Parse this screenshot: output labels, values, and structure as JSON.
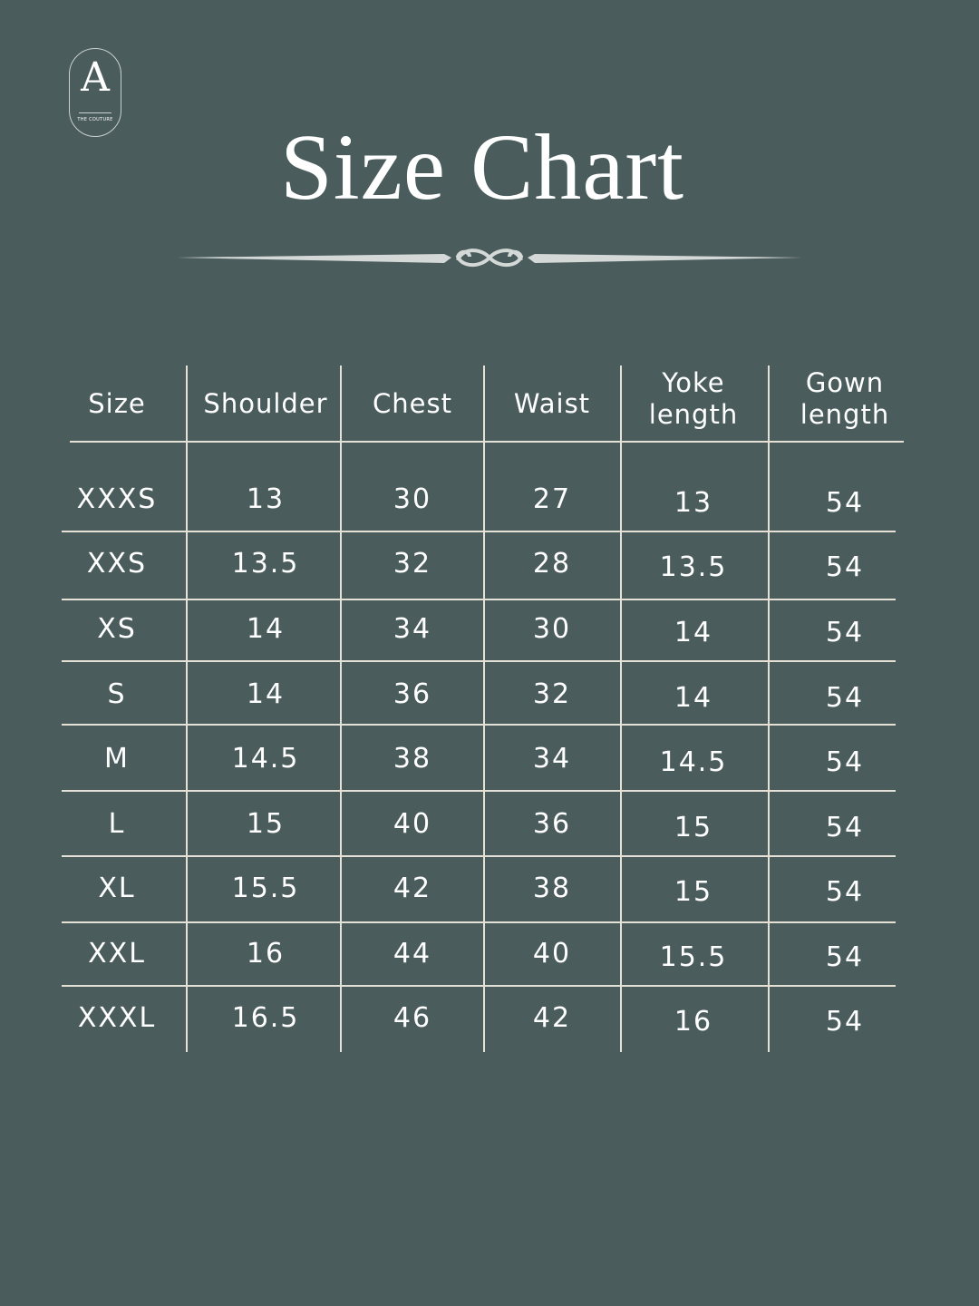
{
  "logo": {
    "letter": "A",
    "tagline": "THE COUTURE"
  },
  "title": "Size Chart",
  "table": {
    "headers": [
      [
        "Size"
      ],
      [
        "Shoulder"
      ],
      [
        "Chest"
      ],
      [
        "Waist"
      ],
      [
        "Yoke",
        "length"
      ],
      [
        "Gown",
        "length"
      ]
    ],
    "rows": [
      [
        "XXXS",
        "13",
        "30",
        "27",
        "13",
        "54"
      ],
      [
        "XXS",
        "13.5",
        "32",
        "28",
        "13.5",
        "54"
      ],
      [
        "XS",
        "14",
        "34",
        "30",
        "14",
        "54"
      ],
      [
        "S",
        "14",
        "36",
        "32",
        "14",
        "54"
      ],
      [
        "M",
        "14.5",
        "38",
        "34",
        "14.5",
        "54"
      ],
      [
        "L",
        "15",
        "40",
        "36",
        "15",
        "54"
      ],
      [
        "XL",
        "15.5",
        "42",
        "38",
        "15",
        "54"
      ],
      [
        "XXL",
        "16",
        "44",
        "40",
        "15.5",
        "54"
      ],
      [
        "XXXL",
        "16.5",
        "46",
        "42",
        "16",
        "54"
      ]
    ]
  },
  "colors": {
    "background": "#4b5c5d",
    "lines": "#e6e1d6",
    "text": "#ffffff"
  }
}
